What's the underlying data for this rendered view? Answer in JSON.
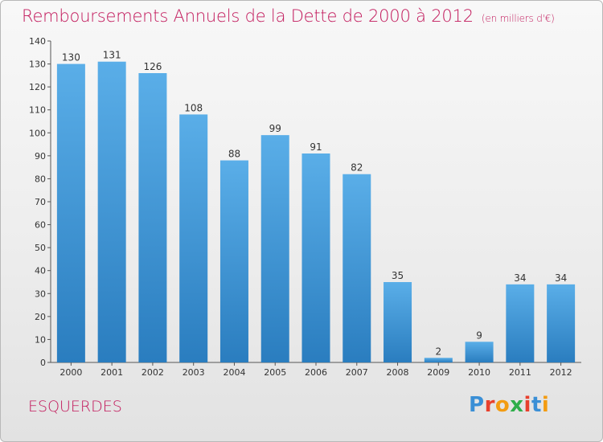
{
  "title": "Remboursements Annuels de la Dette de 2000 à 2012",
  "unit": "(en milliers d'€)",
  "commune": "ESQUERDES",
  "brand": {
    "letters": [
      "P",
      "r",
      "o",
      "x",
      "i",
      "t",
      "i"
    ],
    "colors": [
      "#3a8fd6",
      "#e8402d",
      "#f39c12",
      "#2eae4a",
      "#e8402d",
      "#3a8fd6",
      "#f39c12"
    ]
  },
  "colors": {
    "bar_top": "#5aaee8",
    "bar_bottom": "#2a7dbf",
    "title": "#c2185b"
  },
  "chart_data": {
    "type": "bar",
    "categories": [
      "2000",
      "2001",
      "2002",
      "2003",
      "2004",
      "2005",
      "2006",
      "2007",
      "2008",
      "2009",
      "2010",
      "2011",
      "2012"
    ],
    "values": [
      130,
      131,
      126,
      108,
      88,
      99,
      91,
      82,
      35,
      2,
      9,
      34,
      34
    ],
    "yticks": [
      0,
      10,
      20,
      30,
      40,
      50,
      60,
      70,
      80,
      90,
      100,
      110,
      120,
      130,
      140
    ],
    "ylim": [
      0,
      140
    ],
    "grid": false,
    "legend": "none"
  }
}
